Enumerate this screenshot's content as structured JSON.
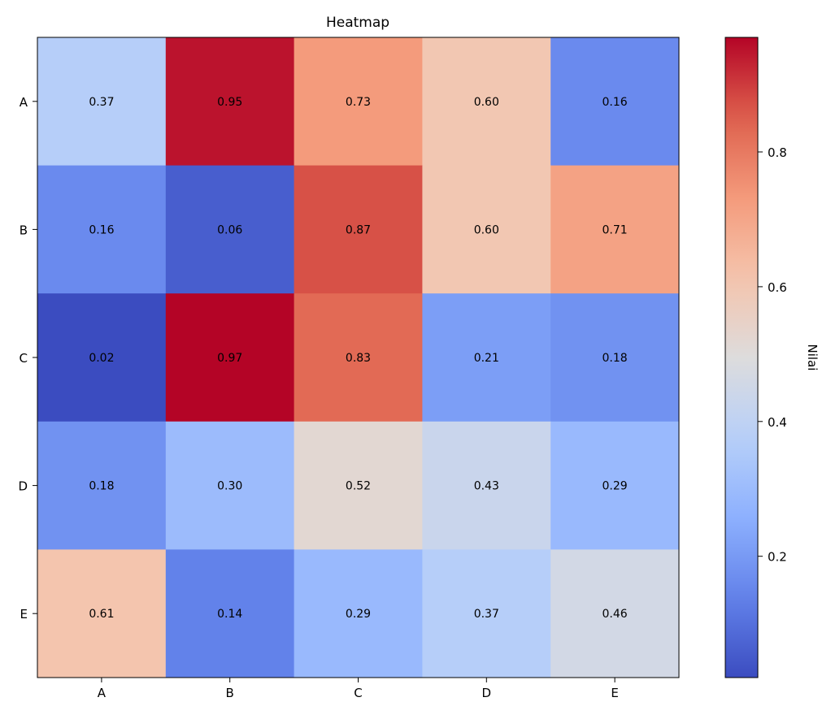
{
  "chart_data": {
    "type": "heatmap",
    "title": "Heatmap",
    "x_categories": [
      "A",
      "B",
      "C",
      "D",
      "E"
    ],
    "y_categories": [
      "A",
      "B",
      "C",
      "D",
      "E"
    ],
    "values": [
      [
        0.37,
        0.95,
        0.73,
        0.6,
        0.16
      ],
      [
        0.16,
        0.06,
        0.87,
        0.6,
        0.71
      ],
      [
        0.02,
        0.97,
        0.83,
        0.21,
        0.18
      ],
      [
        0.18,
        0.3,
        0.52,
        0.43,
        0.29
      ],
      [
        0.61,
        0.14,
        0.29,
        0.37,
        0.46
      ]
    ],
    "value_format": "0.00",
    "colormap": "coolwarm",
    "color_range": [
      0.02,
      0.97
    ],
    "colorbar": {
      "label": "Nilai",
      "ticks": [
        0.2,
        0.4,
        0.6,
        0.8
      ],
      "tick_labels": [
        "0.2",
        "0.4",
        "0.6",
        "0.8"
      ]
    }
  }
}
